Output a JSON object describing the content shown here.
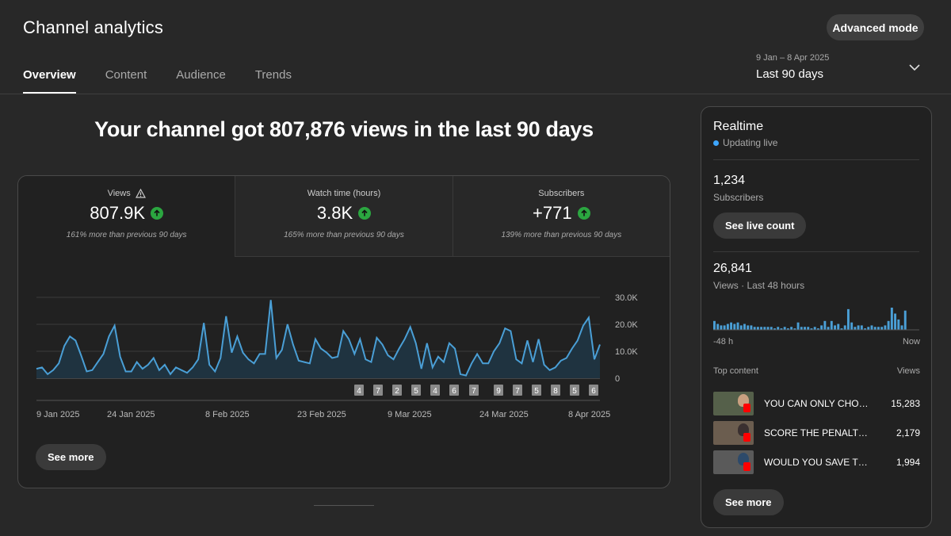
{
  "header": {
    "title": "Channel analytics",
    "advanced_mode_label": "Advanced mode",
    "tabs": [
      {
        "label": "Overview",
        "active": true
      },
      {
        "label": "Content",
        "active": false
      },
      {
        "label": "Audience",
        "active": false
      },
      {
        "label": "Trends",
        "active": false
      }
    ],
    "date_range": {
      "dates": "9 Jan – 8 Apr 2025",
      "label": "Last 90 days"
    }
  },
  "overview": {
    "headline": "Your channel got 807,876 views in the last 90 days",
    "metrics": [
      {
        "label": "Views",
        "value": "807.9K",
        "change": "161% more than previous 90 days",
        "warning": true
      },
      {
        "label": "Watch time (hours)",
        "value": "3.8K",
        "change": "165% more than previous 90 days",
        "warning": false
      },
      {
        "label": "Subscribers",
        "value": "+771",
        "change": "139% more than previous 90 days",
        "warning": false
      }
    ],
    "see_more_label": "See more"
  },
  "chart_data": {
    "type": "area",
    "title": "Views",
    "x_labels": [
      "9 Jan 2025",
      "24 Jan 2025",
      "8 Feb 2025",
      "23 Feb 2025",
      "9 Mar 2025",
      "24 Mar 2025",
      "8 Apr 2025"
    ],
    "y_ticks": [
      "30.0K",
      "20.0K",
      "10.0K",
      "0"
    ],
    "ylim": [
      0,
      30000
    ],
    "values": [
      3500,
      4000,
      1500,
      3000,
      5500,
      12000,
      15500,
      14000,
      8500,
      2500,
      3000,
      6000,
      9000,
      15500,
      19500,
      8000,
      2500,
      2500,
      6000,
      3500,
      5000,
      7500,
      3000,
      5000,
      1500,
      4000,
      3000,
      2000,
      4000,
      7000,
      20500,
      5000,
      2500,
      7500,
      23000,
      9500,
      15500,
      9500,
      7000,
      5500,
      9000,
      9000,
      29000,
      7500,
      10500,
      20000,
      12500,
      6500,
      6000,
      5500,
      14500,
      11000,
      9500,
      7500,
      8000,
      17500,
      14500,
      9000,
      14500,
      7000,
      6000,
      15000,
      12500,
      8500,
      7000,
      11000,
      14500,
      19000,
      13000,
      3500,
      13000,
      4000,
      8000,
      6000,
      13000,
      11000,
      1500,
      1000,
      5500,
      9000,
      5500,
      5500,
      10000,
      13000,
      18500,
      17500,
      7000,
      5500,
      14000,
      6000,
      14500,
      5000,
      3000,
      4000,
      6500,
      7500,
      11000,
      14000,
      19500,
      22500,
      7000,
      12500
    ],
    "upload_markers": [
      "4",
      "7",
      "2",
      "5",
      "4",
      "6",
      "7",
      "9",
      "7",
      "5",
      "8",
      "5",
      "6"
    ]
  },
  "realtime": {
    "title": "Realtime",
    "status": "Updating live",
    "subscribers_count": "1,234",
    "subscribers_label": "Subscribers",
    "live_count_button": "See live count",
    "views_count": "26,841",
    "views_label": "Views · Last 48 hours",
    "axis_start": "-48 h",
    "axis_end": "Now",
    "bars": [
      6,
      4,
      3,
      3,
      4,
      5,
      4,
      5,
      3,
      4,
      3,
      3,
      2,
      2,
      2,
      2,
      2,
      2,
      1,
      2,
      1,
      2,
      1,
      2,
      1,
      5,
      2,
      2,
      2,
      1,
      2,
      1,
      3,
      6,
      2,
      6,
      3,
      4,
      1,
      3,
      14,
      5,
      2,
      3,
      3,
      1,
      2,
      3,
      2,
      2,
      2,
      3,
      6,
      15,
      11,
      7,
      3,
      13
    ],
    "top_content_label": "Top content",
    "views_column_label": "Views",
    "top_content": [
      {
        "title": "YOU CAN ONLY CHOOSE ONE",
        "views": "15,283"
      },
      {
        "title": "SCORE THE PENALTY & WIN",
        "views": "2,179"
      },
      {
        "title": "WOULD YOU SAVE THIS?",
        "views": "1,994"
      }
    ],
    "see_more_label": "See more"
  },
  "colors": {
    "accent": "#3ea6ff",
    "positive": "#2ba640",
    "line": "#4a9fd6",
    "background": "#282828"
  }
}
